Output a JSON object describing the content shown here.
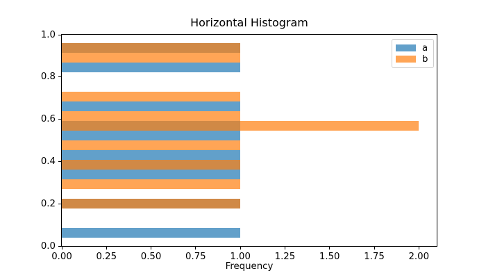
{
  "chart_data": {
    "type": "bar",
    "variant": "horizontal-histogram",
    "title": "Horizontal Histogram",
    "xlabel": "Frequency",
    "ylabel": "",
    "xlim": [
      0,
      2.1
    ],
    "ylim": [
      0,
      1
    ],
    "x_ticks": [
      "0.00",
      "0.25",
      "0.50",
      "0.75",
      "1.00",
      "1.25",
      "1.50",
      "1.75",
      "2.00"
    ],
    "y_ticks": [
      "0.0",
      "0.2",
      "0.4",
      "0.6",
      "0.8",
      "1.0"
    ],
    "grid": false,
    "legend_position": "upper right",
    "bar_alpha": 0.7,
    "legend": [
      {
        "label": "a",
        "color": "#1f77b4"
      },
      {
        "label": "b",
        "color": "#ff7f0e"
      }
    ],
    "bins": {
      "start": 0.04,
      "width": 0.046,
      "count": 20
    },
    "series": [
      {
        "name": "a",
        "color": "#1f77b4",
        "counts": [
          1,
          0,
          0,
          1,
          0,
          0,
          1,
          1,
          1,
          0,
          1,
          1,
          0,
          1,
          0,
          0,
          0,
          1,
          0,
          1
        ]
      },
      {
        "name": "b",
        "color": "#ff7f0e",
        "counts": [
          0,
          0,
          0,
          1,
          0,
          1,
          0,
          1,
          0,
          1,
          0,
          2,
          1,
          0,
          1,
          0,
          0,
          0,
          1,
          1
        ]
      }
    ]
  }
}
